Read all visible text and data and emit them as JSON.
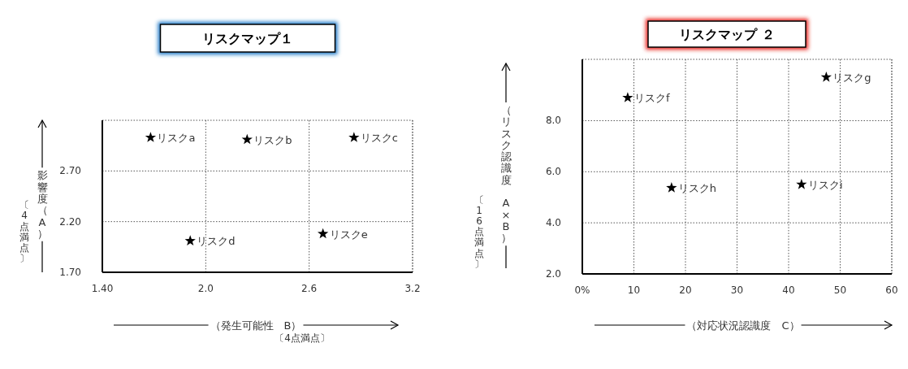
{
  "chart_data": [
    {
      "type": "scatter",
      "title": "リスクマップ１",
      "xlabel": "（発生可能性　B）",
      "ylabel": "影響度（A）",
      "annotations": [
        "〔4点満点〕",
        "〔4点満点〕"
      ],
      "xlim": [
        1.4,
        3.2
      ],
      "ylim": [
        1.7,
        3.2
      ],
      "xticks": [
        {
          "value": 1.4,
          "label": "1.40"
        },
        {
          "value": 2.0,
          "label": "2.0"
        },
        2.6,
        3.2
      ],
      "yticks": [
        {
          "value": 1.7,
          "label": "1.70"
        },
        {
          "value": 2.2,
          "label": "2.20"
        },
        {
          "value": 2.7,
          "label": "2.70"
        }
      ],
      "grid": true,
      "marker": "star",
      "series": [
        {
          "name": "リスクa",
          "color": "#000000",
          "x": [
            1.68
          ],
          "values": [
            3.03
          ]
        },
        {
          "name": "リスクb",
          "color": "#000000",
          "x": [
            2.24
          ],
          "values": [
            3.01
          ]
        },
        {
          "name": "リスクc",
          "color": "#000000",
          "x": [
            2.86
          ],
          "values": [
            3.03
          ]
        },
        {
          "name": "リスクd",
          "color": "#000000",
          "x": [
            1.91
          ],
          "values": [
            2.01
          ]
        },
        {
          "name": "リスクe",
          "color": "#000000",
          "x": [
            2.68
          ],
          "values": [
            2.08
          ]
        }
      ]
    },
    {
      "type": "scatter",
      "title": "リスクマップ ２",
      "xlabel": "（対応状況認識度　C）",
      "ylabel": "（リスク認識度　A×B）",
      "annotations": [
        "〔16点満点〕"
      ],
      "xlim": [
        0,
        60
      ],
      "ylim": [
        2,
        10.4
      ],
      "xticks": [
        {
          "value": 0,
          "label": "0%"
        },
        10,
        20,
        30,
        40,
        50,
        60
      ],
      "yticks": [
        {
          "value": 2,
          "label": "2.0"
        },
        {
          "value": 4,
          "label": "4.0"
        },
        {
          "value": 6,
          "label": "6.0"
        },
        {
          "value": 8,
          "label": "8.0"
        }
      ],
      "grid": true,
      "marker": "star",
      "series": [
        {
          "name": "リスクf",
          "color": "#000000",
          "x": [
            8.8
          ],
          "values": [
            8.9
          ]
        },
        {
          "name": "リスクg",
          "color": "#000000",
          "x": [
            47.3
          ],
          "values": [
            9.7
          ]
        },
        {
          "name": "リスクh",
          "color": "#000000",
          "x": [
            17.3
          ],
          "values": [
            5.37
          ]
        },
        {
          "name": "リスクi",
          "color": "#000000",
          "x": [
            42.5
          ],
          "values": [
            5.5
          ]
        }
      ]
    }
  ]
}
